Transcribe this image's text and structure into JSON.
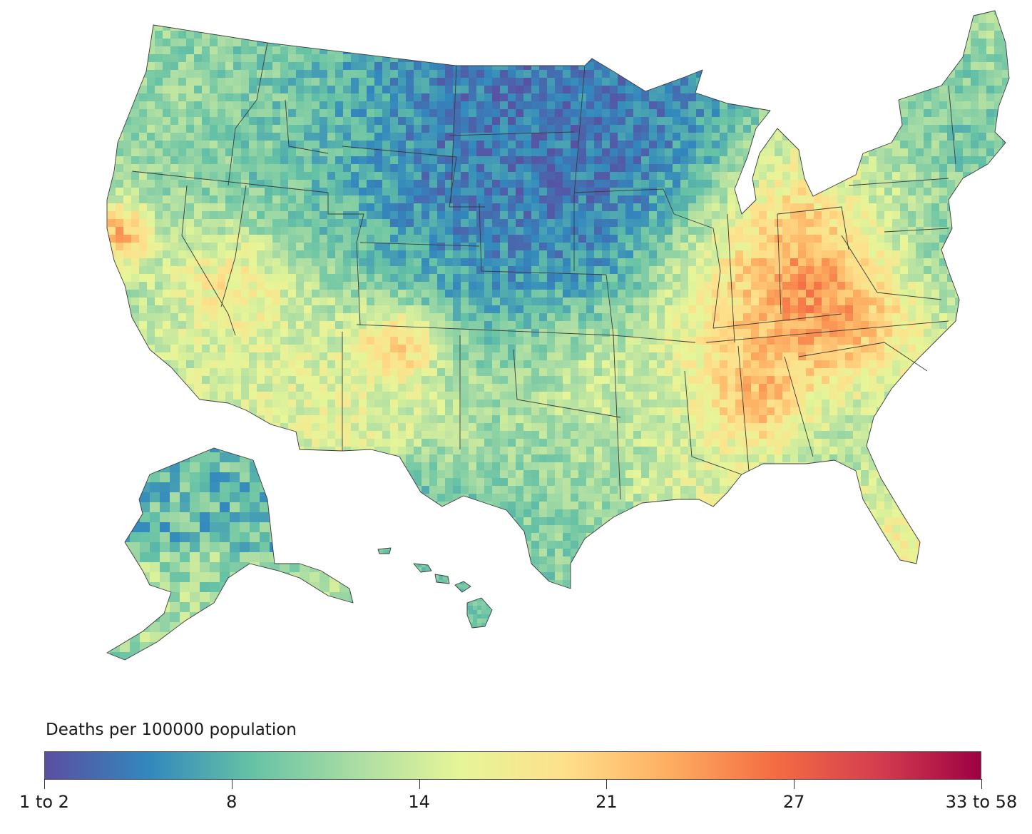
{
  "legend": {
    "title": "Deaths per 100000 population",
    "ticks": [
      "1 to 2",
      "8",
      "14",
      "21",
      "27",
      "33 to 58"
    ],
    "colors": [
      "#5b4ea1",
      "#3288bd",
      "#66c2a5",
      "#abdda4",
      "#e6f598",
      "#fee08b",
      "#fdae61",
      "#f46d43",
      "#d53e4f",
      "#9e0142"
    ]
  },
  "map": {
    "regions_shown": [
      "Contiguous United States",
      "Alaska",
      "Hawaii"
    ],
    "color_scale": "diverging spectral, low = purple/blue, high = dark red"
  }
}
